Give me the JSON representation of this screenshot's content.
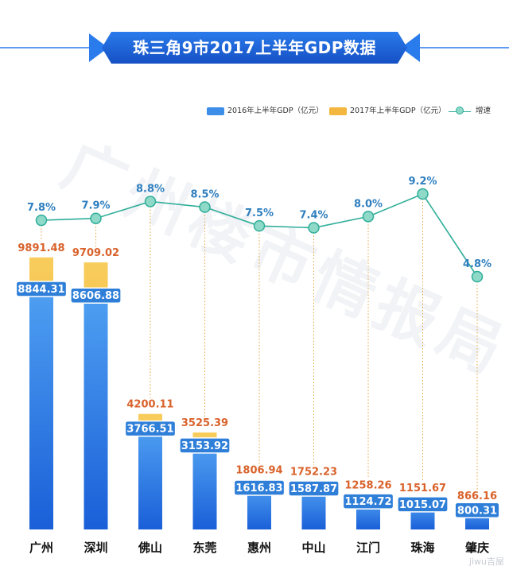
{
  "title": "珠三角9市2017上半年GDP数据",
  "watermark": "广州楼市情报局",
  "corner_mark": "jiwu吉屋",
  "colors": {
    "bar2016": "#3d8ee8",
    "bar2017": "#f3b73f",
    "line": "#2fae99",
    "dot": "#8fd9c9",
    "banner": "#1d66d6",
    "label2017": "#d9622b",
    "growth": "#2f7fbf"
  },
  "legend": {
    "s2016": "2016年上半年GDP（亿元）",
    "s2017": "2017年上半年GDP（亿元）",
    "growth": "增速"
  },
  "chart_data": {
    "type": "bar",
    "title": "珠三角9市2017上半年GDP数据",
    "categories": [
      "广州",
      "深圳",
      "佛山",
      "东莞",
      "惠州",
      "中山",
      "江门",
      "珠海",
      "肇庆"
    ],
    "series": [
      {
        "name": "2016年上半年GDP（亿元）",
        "values": [
          8844.31,
          8606.88,
          3766.51,
          3153.92,
          1616.83,
          1587.87,
          1124.72,
          1015.07,
          800.31
        ],
        "labels": [
          "8844.31",
          "8606.88",
          "3766.51",
          "3153.92",
          "1616.83",
          "1587.87",
          "1124.72",
          "1015.07",
          "800.31"
        ]
      },
      {
        "name": "2017年上半年GDP（亿元）",
        "values": [
          9891.48,
          9709.02,
          4200.11,
          3525.39,
          1806.94,
          1752.23,
          1258.26,
          1151.67,
          866.16
        ],
        "labels": [
          "9891.48",
          "9709.02",
          "4200.11",
          "3525.39",
          "1806.94",
          "1752.23",
          "1258.26",
          "1151.67",
          "866.16"
        ]
      },
      {
        "name": "增速",
        "values": [
          7.8,
          7.9,
          8.8,
          8.5,
          7.5,
          7.4,
          8.0,
          9.2,
          4.8
        ],
        "labels": [
          "7.8%",
          "7.9%",
          "8.8%",
          "8.5%",
          "7.5%",
          "7.4%",
          "8.0%",
          "9.2%",
          "4.8%"
        ]
      }
    ],
    "ylim": [
      0,
      10000
    ],
    "growth_range": [
      4.8,
      9.2
    ],
    "legend_position": "top-right"
  }
}
